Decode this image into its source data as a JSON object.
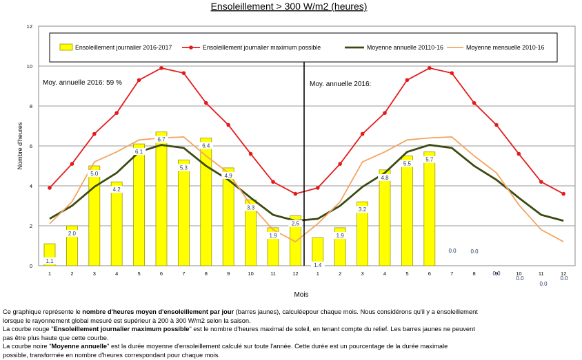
{
  "chart_data": {
    "type": "bar",
    "title": "Ensoleillement  > 300 W/m2 (heures)",
    "xlabel": "Mois",
    "ylabel": "Nombre d'heures",
    "ylim": [
      0,
      12
    ],
    "yticks": [
      0,
      2,
      4,
      6,
      8,
      10,
      12
    ],
    "grid": true,
    "legend_position": "top",
    "categories": [
      "1",
      "2",
      "3",
      "4",
      "5",
      "6",
      "7",
      "8",
      "9",
      "10",
      "11",
      "12",
      "1",
      "2",
      "3",
      "4",
      "5",
      "6",
      "7",
      "8",
      "9",
      "10",
      "11",
      "12"
    ],
    "series": [
      {
        "name": "Ensoleillement journalier 2016-2017",
        "type": "bar",
        "color": "#FFFF00",
        "values": [
          1.1,
          2.0,
          5.0,
          4.2,
          6.1,
          6.7,
          5.3,
          6.4,
          4.9,
          3.3,
          1.9,
          2.5,
          1.4,
          1.9,
          3.2,
          4.8,
          5.5,
          5.7,
          0.0,
          0.0,
          0.0,
          0.0,
          0.0,
          0.0
        ],
        "labels": [
          "1.1",
          "2.0",
          "5.0",
          "4.2",
          "6.1",
          "6.7",
          "5.3",
          "6.4",
          "4.9",
          "3.3",
          "1.9",
          "2.5",
          "1.4",
          "1.9",
          "3.2",
          "4.8",
          "5.5",
          "5.7",
          "0.0",
          "0.0",
          "0.0",
          "0.0",
          "0.0",
          "0.0"
        ]
      },
      {
        "name": "Ensoleillement journalier maximum possible",
        "type": "line",
        "color": "#E31A1C",
        "values": [
          3.9,
          5.1,
          6.6,
          7.65,
          9.3,
          9.9,
          9.65,
          8.15,
          7.05,
          5.6,
          4.2,
          3.6,
          3.9,
          5.1,
          6.6,
          7.65,
          9.3,
          9.9,
          9.65,
          8.15,
          7.05,
          5.6,
          4.2,
          3.6
        ]
      },
      {
        "name": "Moyenne annuelle 20110-16",
        "type": "line",
        "color": "#3A4A10",
        "values": [
          2.35,
          3.0,
          3.95,
          4.65,
          5.7,
          6.05,
          5.9,
          5.0,
          4.3,
          3.4,
          2.55,
          2.25,
          2.35,
          3.0,
          3.95,
          4.65,
          5.7,
          6.05,
          5.9,
          5.0,
          4.3,
          3.4,
          2.55,
          2.25
        ]
      },
      {
        "name": "Moyenne mensuelle 2010-16",
        "type": "line",
        "color": "#F4A460",
        "values": [
          2.1,
          3.2,
          5.2,
          5.7,
          6.3,
          6.4,
          6.45,
          5.5,
          4.65,
          3.05,
          1.8,
          1.2,
          2.1,
          3.2,
          5.2,
          5.7,
          6.3,
          6.4,
          6.45,
          5.5,
          4.65,
          3.05,
          1.8,
          1.2
        ]
      }
    ],
    "annotations": [
      "Moy. annuelle 2016: 59 %",
      "Moy. annuelle 2016:"
    ],
    "divider_after_category_index": 11
  },
  "notes": [
    {
      "parts": [
        {
          "text": "Ce graphique  représente le ",
          "bold": false
        },
        {
          "text": "nombre d'heures moyen d'ensoleillement par jour",
          "bold": true
        },
        {
          "text": " (barres  jaunes), calculéepour chaque mois. Nous considérons qu'il y a ensoleillement",
          "bold": false
        }
      ]
    },
    {
      "parts": [
        {
          "text": "lorsque le rayonnement global mesuré est supérieur à 200 à 300 W/m2 selon la saison.",
          "bold": false
        }
      ]
    },
    {
      "parts": [
        {
          "text": "La courbe rouge \"",
          "bold": false
        },
        {
          "text": "Ensoleillement journalier  maximum possible",
          "bold": true
        },
        {
          "text": "\" est le  nombre d'heures maximal de soleil, en tenant compte du relief. Les barres jaunes ne peuvent",
          "bold": false
        }
      ]
    },
    {
      "parts": [
        {
          "text": "pas être plus haute que cette courbe.",
          "bold": false
        }
      ]
    },
    {
      "parts": [
        {
          "text": "La courbe noire \"",
          "bold": false
        },
        {
          "text": "Moyenne annuelle",
          "bold": true
        },
        {
          "text": "\"  est la durée moyenne d'ensoleillement  calculé sur toute l'année. Cette durée est un pourcentage de la durée maximale",
          "bold": false
        }
      ]
    },
    {
      "parts": [
        {
          "text": "possible, transformée en nombre d'heures correspondant pour chaque mois.",
          "bold": false
        }
      ]
    }
  ]
}
